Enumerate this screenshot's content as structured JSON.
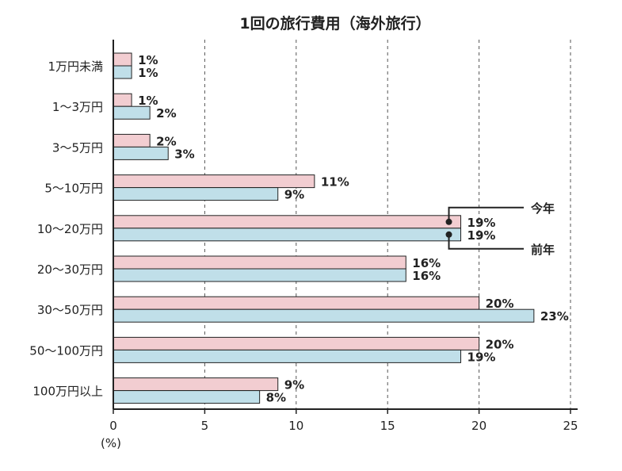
{
  "chart_data": {
    "type": "bar",
    "orientation": "horizontal",
    "title": "1回の旅行費用（海外旅行）",
    "xlabel": "",
    "ylabel": "",
    "unit_label": "(%)",
    "xlim": [
      0,
      25
    ],
    "xticks": [
      "0",
      "5",
      "10",
      "15",
      "20",
      "25"
    ],
    "grid": "vertical dashed",
    "categories": [
      "1万円未満",
      "1〜3万円",
      "3〜5万円",
      "5〜10万円",
      "10〜20万円",
      "20〜30万円",
      "30〜50万円",
      "50〜100万円",
      "100万円以上"
    ],
    "series": [
      {
        "name": "今年",
        "color": "#f2cdd1",
        "values": [
          1,
          1,
          2,
          11,
          19,
          16,
          20,
          20,
          9
        ],
        "labels": [
          "1%",
          "1%",
          "2%",
          "11%",
          "19%",
          "16%",
          "20%",
          "20%",
          "9%"
        ]
      },
      {
        "name": "前年",
        "color": "#c0dfe9",
        "values": [
          1,
          2,
          3,
          9,
          19,
          16,
          23,
          19,
          8
        ],
        "labels": [
          "1%",
          "2%",
          "3%",
          "9%",
          "19%",
          "16%",
          "23%",
          "19%",
          "8%"
        ]
      }
    ],
    "legend": {
      "placement": "callout on 10〜20万円 bars, right side",
      "top_label": "今年",
      "bottom_label": "前年"
    }
  }
}
